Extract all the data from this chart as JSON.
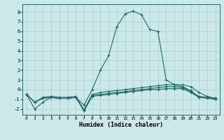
{
  "xlabel": "Humidex (Indice chaleur)",
  "xlim": [
    -0.5,
    23.5
  ],
  "ylim": [
    -2.6,
    8.8
  ],
  "yticks": [
    -2,
    -1,
    0,
    1,
    2,
    3,
    4,
    5,
    6,
    7,
    8
  ],
  "xticks": [
    0,
    1,
    2,
    3,
    4,
    5,
    6,
    7,
    8,
    9,
    10,
    11,
    12,
    13,
    14,
    15,
    16,
    17,
    18,
    19,
    20,
    21,
    22,
    23
  ],
  "background_color": "#cce8e8",
  "grid_color": "#aacccc",
  "line_color": "#1a6b6b",
  "lines": [
    [
      0,
      -0.5,
      1,
      -2.0,
      2,
      -1.3,
      3,
      -0.8,
      4,
      -0.9,
      5,
      -0.9,
      6,
      -0.8,
      7,
      -1.6,
      8,
      0.0,
      9,
      2.0,
      10,
      3.5,
      11,
      6.5,
      12,
      7.8,
      13,
      8.1,
      14,
      7.7,
      15,
      6.2,
      16,
      6.0,
      17,
      1.0,
      18,
      0.5,
      19,
      0.3,
      20,
      -0.1,
      21,
      -0.8,
      22,
      -0.8,
      23,
      -0.9
    ],
    [
      0,
      -0.5,
      1,
      -1.3,
      2,
      -0.8,
      3,
      -0.7,
      4,
      -0.8,
      5,
      -0.8,
      6,
      -0.7,
      7,
      -2.1,
      8,
      -0.5,
      9,
      -0.3,
      10,
      -0.2,
      11,
      -0.1,
      12,
      0.0,
      13,
      0.1,
      14,
      0.2,
      15,
      0.3,
      16,
      0.4,
      17,
      0.5,
      18,
      0.5,
      19,
      0.5,
      20,
      0.3,
      21,
      -0.3,
      22,
      -0.7,
      23,
      -0.9
    ],
    [
      0,
      -0.5,
      1,
      -1.3,
      2,
      -0.9,
      3,
      -0.8,
      4,
      -0.9,
      5,
      -0.9,
      6,
      -0.8,
      7,
      -2.1,
      8,
      -0.6,
      9,
      -0.5,
      10,
      -0.4,
      11,
      -0.3,
      12,
      -0.2,
      13,
      -0.1,
      14,
      0.0,
      15,
      0.1,
      16,
      0.2,
      17,
      0.3,
      18,
      0.3,
      19,
      0.2,
      20,
      -0.2,
      21,
      -0.7,
      22,
      -0.8,
      23,
      -0.9
    ],
    [
      0,
      -0.5,
      1,
      -1.3,
      2,
      -0.9,
      3,
      -0.8,
      4,
      -0.9,
      5,
      -0.9,
      6,
      -0.8,
      7,
      -2.2,
      8,
      -0.7,
      9,
      -0.6,
      10,
      -0.5,
      11,
      -0.4,
      12,
      -0.3,
      13,
      -0.2,
      14,
      -0.1,
      15,
      0.0,
      16,
      0.0,
      17,
      0.1,
      18,
      0.1,
      19,
      0.1,
      20,
      -0.3,
      21,
      -0.8,
      22,
      -0.9,
      23,
      -1.0
    ]
  ]
}
